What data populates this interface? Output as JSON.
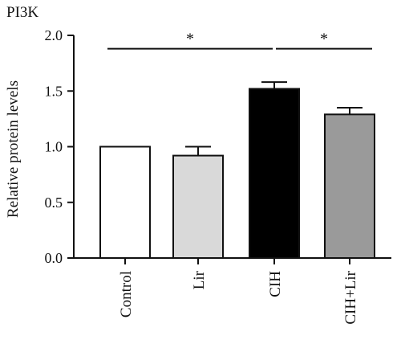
{
  "chart_data": {
    "type": "bar",
    "title": "PI3K",
    "ylabel": "Relative protein levels",
    "xlabel": "",
    "ylim": [
      0,
      2.0
    ],
    "yticks": [
      "0.0",
      "0.5",
      "1.0",
      "1.5",
      "2.0"
    ],
    "categories": [
      "Control",
      "Lir",
      "CIH",
      "CIH+Lir"
    ],
    "values": [
      1.0,
      0.92,
      1.52,
      1.29
    ],
    "errors": [
      0.0,
      0.08,
      0.06,
      0.06
    ],
    "colors": [
      "#ffffff",
      "#d9d9d9",
      "#000000",
      "#9a9a9a"
    ],
    "grid": false,
    "significance": [
      {
        "from": "Control",
        "to": "CIH",
        "label": "*",
        "level": 1.88
      },
      {
        "from": "CIH",
        "to": "CIH+Lir",
        "label": "*",
        "level": 1.88
      }
    ]
  }
}
